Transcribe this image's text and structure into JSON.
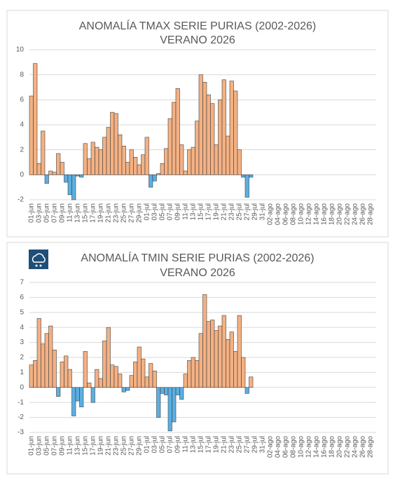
{
  "chart_data": [
    {
      "type": "bar",
      "title": "ANOMALÍA TMAX SERIE PURIAS (2002-2026)",
      "subtitle": "VERANO 2026",
      "categories": [
        "01-jun",
        null,
        "03-jun",
        null,
        "05-jun",
        null,
        "07-jun",
        null,
        "09-jun",
        null,
        "11-jun",
        null,
        "13-jun",
        null,
        "15-jun",
        null,
        "17-jun",
        null,
        "19-jun",
        null,
        "21-jun",
        null,
        "23-jun",
        null,
        "25-jun",
        null,
        "27-jun",
        null,
        "29-jun",
        null,
        "01-jul",
        null,
        "03-jul",
        null,
        "05-jul",
        null,
        "07-jul",
        null,
        "09-jul",
        null,
        "11-jul",
        null,
        "13-jul",
        null,
        "15-jul",
        null,
        "17-jul",
        null,
        "19-jul",
        null,
        "21-jul",
        null,
        "23-jul",
        null,
        "25-jul",
        null,
        "27-jul",
        null,
        "29-jul",
        null,
        "31-jul",
        null,
        "02-ago",
        null,
        "04-ago",
        null,
        "06-ago",
        null,
        "08-ago",
        null,
        "10-ago",
        null,
        "12-ago",
        null,
        "14-ago",
        null,
        "16-ago",
        null,
        "18-ago",
        null,
        "20-ago",
        null,
        "22-ago",
        null,
        "24-ago",
        null,
        "26-ago",
        null,
        "28-ago",
        null
      ],
      "values": [
        6.3,
        8.9,
        0.9,
        3.5,
        -0.7,
        0.3,
        0.2,
        1.7,
        1.0,
        -0.6,
        -1.6,
        -2.0,
        -0.1,
        -0.2,
        2.5,
        1.3,
        2.6,
        2.2,
        2.0,
        3.0,
        3.8,
        5.0,
        4.9,
        3.2,
        2.3,
        1.0,
        2.0,
        1.4,
        0.8,
        1.6,
        3.0,
        -1.0,
        -0.5,
        0.1,
        0.9,
        2.1,
        4.5,
        5.8,
        6.9,
        2.4,
        0.3,
        2.0,
        2.2,
        4.3,
        8.0,
        7.4,
        6.4,
        5.7,
        2.4,
        6.0,
        7.6,
        3.1,
        7.5,
        6.7,
        2.0,
        -0.2,
        -1.8,
        -0.2,
        null,
        null,
        null,
        null,
        null,
        null,
        null,
        null,
        null,
        null,
        null,
        null,
        null,
        null,
        null,
        null,
        null,
        null,
        null,
        null,
        null,
        null,
        null,
        null,
        null,
        null,
        null,
        null,
        null,
        null,
        null,
        null
      ],
      "pos_color": "#f4b183",
      "neg_color": "#5bafe2",
      "ylim": [
        -2,
        10
      ],
      "yticks": [
        -2,
        0,
        2,
        4,
        6,
        8,
        10
      ],
      "grid": true
    },
    {
      "type": "bar",
      "title": "ANOMALÍA TMIN SERIE PURIAS (2002-2026)",
      "subtitle": "VERANO 2026",
      "categories": [
        "01-jun",
        null,
        "03-jun",
        null,
        "05-jun",
        null,
        "07-jun",
        null,
        "09-jun",
        null,
        "11-jun",
        null,
        "13-jun",
        null,
        "15-jun",
        null,
        "17-jun",
        null,
        "19-jun",
        null,
        "21-jun",
        null,
        "23-jun",
        null,
        "25-jun",
        null,
        "27-jun",
        null,
        "29-jun",
        null,
        "01-jul",
        null,
        "03-jul",
        null,
        "05-jul",
        null,
        "07-jul",
        null,
        "09-jul",
        null,
        "11-jul",
        null,
        "13-jul",
        null,
        "15-jul",
        null,
        "17-jul",
        null,
        "19-jul",
        null,
        "21-jul",
        null,
        "23-jul",
        null,
        "25-jul",
        null,
        "27-jul",
        null,
        "29-jul",
        null,
        "31-jul",
        null,
        "02-ago",
        null,
        "04-ago",
        null,
        "06-ago",
        null,
        "08-ago",
        null,
        "10-ago",
        null,
        "12-ago",
        null,
        "14-ago",
        null,
        "16-ago",
        null,
        "18-ago",
        null,
        "20-ago",
        null,
        "22-ago",
        null,
        "24-ago",
        null,
        "26-ago",
        null,
        "28-ago",
        null
      ],
      "values": [
        1.5,
        1.8,
        4.6,
        2.9,
        3.6,
        4.1,
        2.5,
        -0.6,
        1.7,
        2.1,
        1.2,
        -1.9,
        -0.9,
        -1.3,
        2.4,
        0.3,
        -1.0,
        1.2,
        0.6,
        3.1,
        4.0,
        1.5,
        1.4,
        0.9,
        -0.3,
        -0.2,
        0.8,
        1.7,
        2.7,
        1.9,
        0.7,
        1.6,
        1.1,
        -2.0,
        -0.4,
        -0.5,
        -2.9,
        -2.3,
        -0.5,
        -0.8,
        0.9,
        1.8,
        2.0,
        1.8,
        3.6,
        6.2,
        4.4,
        4.5,
        3.8,
        4.1,
        4.8,
        3.2,
        3.7,
        2.4,
        4.8,
        2.0,
        -0.4,
        0.7,
        null,
        null,
        null,
        null,
        null,
        null,
        null,
        null,
        null,
        null,
        null,
        null,
        null,
        null,
        null,
        null,
        null,
        null,
        null,
        null,
        null,
        null,
        null,
        null,
        null,
        null,
        null,
        null,
        null,
        null,
        null,
        null
      ],
      "pos_color": "#f4b183",
      "neg_color": "#5bafe2",
      "ylim": [
        -3,
        7
      ],
      "yticks": [
        -3,
        -2,
        -1,
        0,
        1,
        2,
        3,
        4,
        5,
        6,
        7
      ],
      "grid": true
    }
  ]
}
